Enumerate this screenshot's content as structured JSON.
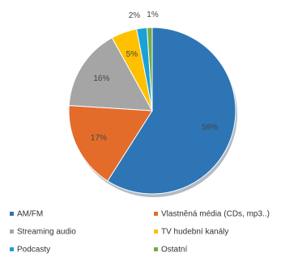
{
  "chart_data": {
    "type": "pie",
    "categories": [
      "AM/FM",
      "Vlastněná média (CDs, mp3..)",
      "Streaming audio",
      "TV hudební kanály",
      "Podcasty",
      "Ostatní"
    ],
    "values": [
      59,
      17,
      16,
      5,
      2,
      1
    ],
    "value_labels": [
      "59%",
      "17%",
      "16%",
      "5%",
      "2%",
      "1%"
    ],
    "colors": [
      "#2e75b6",
      "#e46c2a",
      "#a5a5a5",
      "#ffc000",
      "#1ca0d8",
      "#70ad47"
    ],
    "legend": "bottom"
  }
}
